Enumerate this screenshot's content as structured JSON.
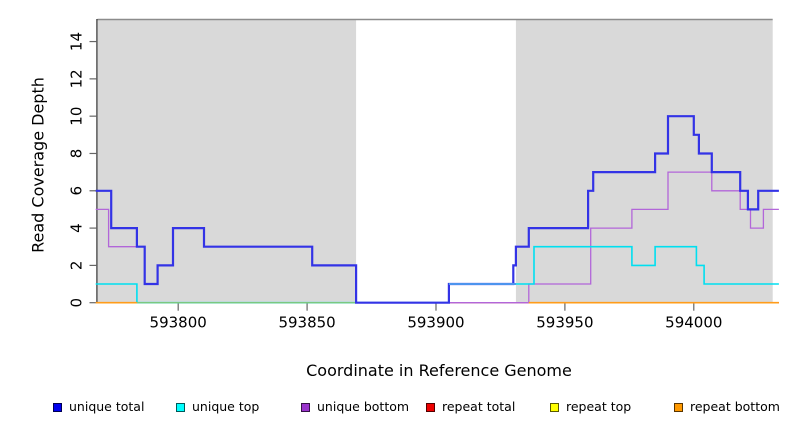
{
  "chart_data": {
    "type": "line",
    "subtype": "step-coverage-plot",
    "title": "",
    "xlabel": "Coordinate in Reference Genome",
    "ylabel": "Read Coverage Depth",
    "xlim": [
      593768,
      594033
    ],
    "ylim": [
      0,
      15
    ],
    "x_ticks": [
      593800,
      593850,
      593900,
      593950,
      594000
    ],
    "y_ticks": [
      0,
      2,
      4,
      6,
      8,
      10,
      12,
      14
    ],
    "grid": "off",
    "legend_position": "bottom",
    "background": {
      "plot_fill": "#d9d9d9",
      "gap_region": {
        "from": 593869,
        "to": 593931,
        "fill": "#ffffff",
        "top_border_color": "#8c8c8c"
      }
    },
    "series": [
      {
        "name": "unique total",
        "color": "#3333e6",
        "width": 2.2,
        "segments": [
          [
            [
              593768,
              6
            ],
            [
              593774,
              4
            ],
            [
              593784,
              3
            ],
            [
              593787,
              1
            ],
            [
              593792,
              2
            ],
            [
              593798,
              4
            ],
            [
              593810,
              3
            ],
            [
              593852,
              2
            ],
            [
              593869,
              0
            ],
            [
              593905,
              1
            ],
            [
              593930,
              2
            ],
            [
              593931,
              3
            ],
            [
              593936,
              4
            ],
            [
              593959,
              6
            ],
            [
              593961,
              7
            ],
            [
              593985,
              8
            ],
            [
              593990,
              10
            ],
            [
              594000,
              9
            ],
            [
              594002,
              8
            ],
            [
              594007,
              7
            ],
            [
              594018,
              6
            ],
            [
              594021,
              5
            ],
            [
              594025,
              6
            ],
            [
              594033,
              6
            ]
          ]
        ]
      },
      {
        "name": "unique top",
        "color": "#00dff0",
        "width": 1.6,
        "segments": [
          [
            [
              593768,
              1
            ],
            [
              593784,
              0
            ],
            [
              593905,
              1
            ],
            [
              593938,
              3
            ],
            [
              593976,
              2
            ],
            [
              593985,
              3
            ],
            [
              594001,
              2
            ],
            [
              594004,
              1
            ],
            [
              594033,
              1
            ]
          ]
        ]
      },
      {
        "name": "unique bottom",
        "color": "#b266d9",
        "width": 1.3,
        "segments": [
          [
            [
              593768,
              5
            ],
            [
              593773,
              3
            ],
            [
              593787,
              1
            ],
            [
              593792,
              2
            ],
            [
              593798,
              4
            ],
            [
              593810,
              3
            ],
            [
              593852,
              2
            ],
            [
              593869,
              0
            ],
            [
              593936,
              1
            ],
            [
              593960,
              4
            ],
            [
              593976,
              5
            ],
            [
              593990,
              7
            ],
            [
              594007,
              6
            ],
            [
              594018,
              5
            ],
            [
              594022,
              4
            ],
            [
              594027,
              5
            ],
            [
              594033,
              5
            ]
          ]
        ]
      },
      {
        "name": "repeat total",
        "color": "#cc4466",
        "width": 1.3,
        "segments": [
          [
            [
              593905,
              0
            ],
            [
              594033,
              0
            ]
          ]
        ]
      },
      {
        "name": "repeat top",
        "color": "#ffff00",
        "width": 1.3,
        "segments": []
      },
      {
        "name": "repeat bottom",
        "color": "#ff9c1a",
        "width": 1.6,
        "segments": [
          [
            [
              593768,
              0
            ],
            [
              593784,
              0
            ]
          ],
          [
            [
              593936,
              0
            ],
            [
              594033,
              0
            ]
          ]
        ]
      }
    ],
    "baseline_overlaps": [
      {
        "name": "cyan-yellow-overlap",
        "color": "#7cc87f",
        "width": 1.4,
        "value": 0,
        "from": 593784,
        "to": 593869
      },
      {
        "name": "blue-cyan-overlap",
        "color": "#4d94ee",
        "width": 2.0,
        "value": 1,
        "from": 593905,
        "to": 593931
      }
    ],
    "legend": {
      "items": [
        {
          "label": "unique total",
          "color": "#0000ee"
        },
        {
          "label": "unique top",
          "color": "#00ffff"
        },
        {
          "label": "unique bottom",
          "color": "#9933cc"
        },
        {
          "label": "repeat total",
          "color": "#ee0000"
        },
        {
          "label": "repeat top",
          "color": "#ffff00"
        },
        {
          "label": "repeat bottom",
          "color": "#ff9900"
        }
      ]
    }
  }
}
